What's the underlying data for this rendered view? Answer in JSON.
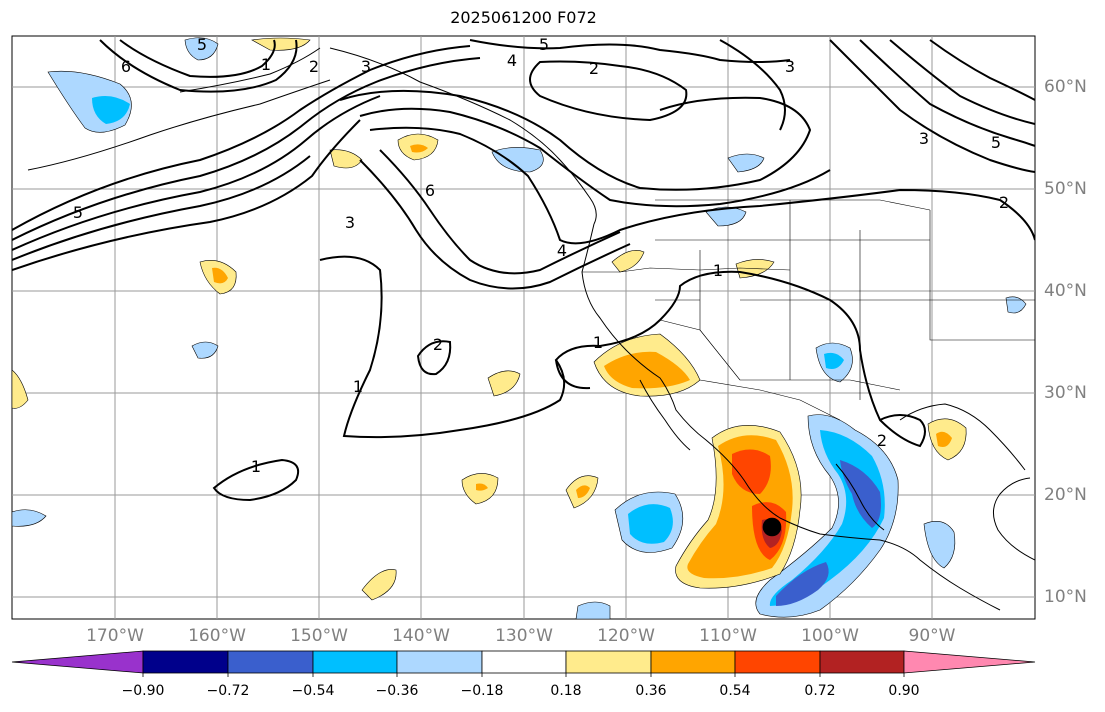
{
  "title": "2025061200 F072",
  "longitude_labels": [
    "170°W",
    "160°W",
    "150°W",
    "140°W",
    "130°W",
    "120°W",
    "110°W",
    "100°W",
    "90°W"
  ],
  "latitude_labels": [
    "60°N",
    "50°N",
    "40°N",
    "30°N",
    "20°N",
    "10°N"
  ],
  "contour_labels": [
    "5",
    "4",
    "2",
    "3",
    "2",
    "1",
    "6",
    "5",
    "3",
    "6",
    "3",
    "5",
    "4",
    "3",
    "2",
    "1",
    "2",
    "1",
    "1",
    "1",
    "2",
    "5"
  ],
  "colorbar": {
    "tick_labels": [
      "−0.90",
      "−0.72",
      "−0.54",
      "−0.36",
      "−0.18",
      "0.18",
      "0.36",
      "0.54",
      "0.72",
      "0.90"
    ],
    "colors": [
      "#9932cc",
      "#00008b",
      "#3a5fcd",
      "#00bfff",
      "#add8ff",
      "#ffffff",
      "#ffeb8c",
      "#ffa500",
      "#ff4500",
      "#b22222",
      "#ff88b0"
    ]
  }
}
